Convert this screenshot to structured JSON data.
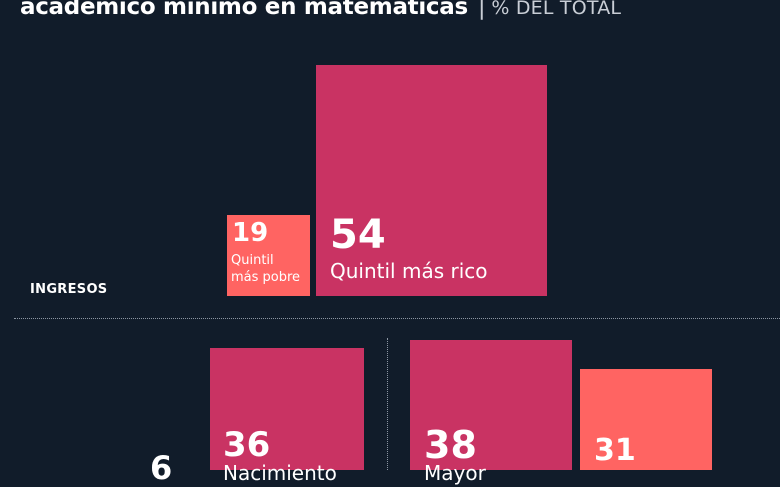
{
  "header": {
    "title": "académico mínimo en matemáticas",
    "separator": "|",
    "unit": "% DEL TOTAL"
  },
  "colors": {
    "background": "#111c2a",
    "dark_bar": "#c93363",
    "light_bar": "#ff6462"
  },
  "chart_data": {
    "type": "bar",
    "title": "académico mínimo en matemáticas",
    "unit": "% DEL TOTAL",
    "sections": [
      {
        "label": "INGRESOS",
        "categories": [
          "Quintil más pobre",
          "Quintil más rico"
        ],
        "values": [
          19,
          54
        ]
      },
      {
        "label": "",
        "categories": [
          "",
          "Nacimiento...",
          "Mayor...",
          ""
        ],
        "values": [
          6,
          36,
          38,
          31
        ]
      }
    ]
  },
  "labels": {
    "poorest_line1": "Quintil",
    "poorest_line2": "más pobre",
    "richest": "Quintil más rico",
    "section_income": "INGRESOS",
    "bar3_partial": "Nacimiento",
    "bar4_partial": "Mayor"
  }
}
